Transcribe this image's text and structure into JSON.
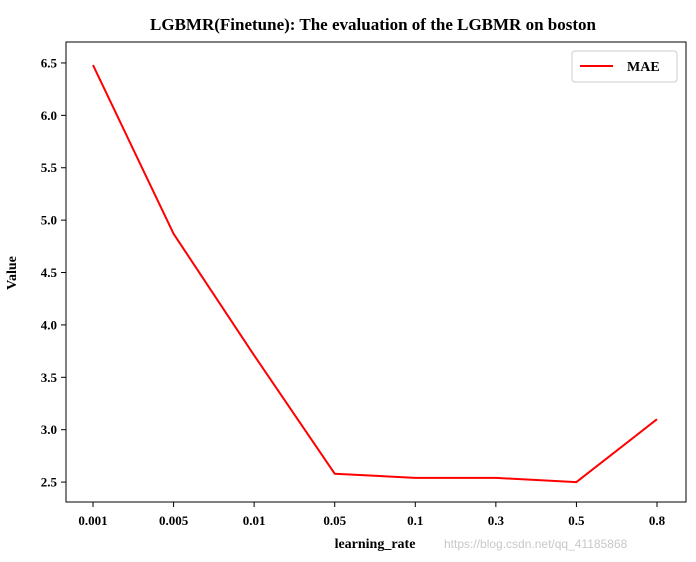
{
  "chart_data": {
    "type": "line",
    "title": "LGBMR(Finetune): The evaluation of the LGBMR on boston",
    "xlabel": "learning_rate",
    "ylabel": "Value",
    "categories": [
      "0.001",
      "0.005",
      "0.01",
      "0.05",
      "0.1",
      "0.3",
      "0.5",
      "0.8"
    ],
    "series": [
      {
        "name": "MAE",
        "color": "#ff0000",
        "values": [
          6.48,
          4.87,
          3.71,
          2.58,
          2.54,
          2.54,
          2.5,
          3.1
        ]
      }
    ],
    "yticks": [
      "2.5",
      "3.0",
      "3.5",
      "4.0",
      "4.5",
      "5.0",
      "5.5",
      "6.0",
      "6.5"
    ],
    "ylim": [
      2.31,
      6.7
    ],
    "grid": false,
    "legend_position": "top-right"
  },
  "watermark": "https://blog.csdn.net/qq_41185868"
}
